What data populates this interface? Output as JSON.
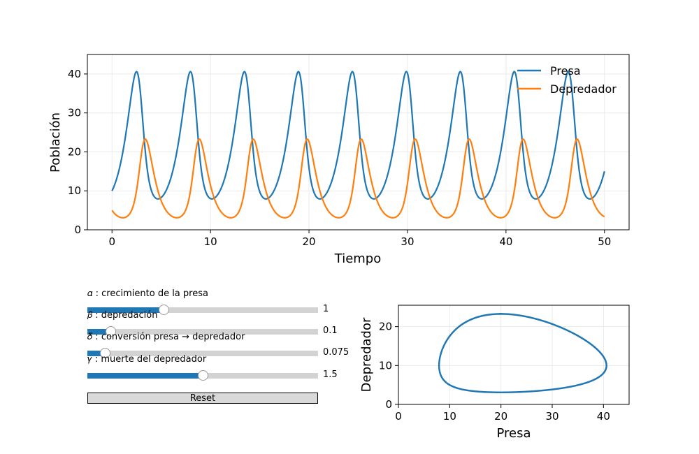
{
  "chart_data": [
    {
      "type": "line",
      "xlabel": "Tiempo",
      "ylabel": "Población",
      "xlim": [
        -2.5,
        52.5
      ],
      "ylim": [
        0,
        45
      ],
      "xticks": [
        0,
        10,
        20,
        30,
        40,
        50
      ],
      "yticks": [
        0,
        10,
        20,
        30,
        40
      ],
      "grid": true,
      "legend": "top-right",
      "model": {
        "alpha": 1,
        "beta": 0.1,
        "delta": 0.075,
        "gamma": 1.5,
        "prey0": 10,
        "predator0": 5,
        "t_end": 50
      },
      "series": [
        {
          "name": "Presa",
          "color": "#1f77b4",
          "peak": 40.5,
          "trough": 8
        },
        {
          "name": "Depredador",
          "color": "#ff7f0e",
          "peak": 23.3,
          "trough": 3.2
        }
      ]
    },
    {
      "type": "line",
      "xlabel": "Presa",
      "ylabel": "Depredador",
      "xlim": [
        0,
        45
      ],
      "ylim": [
        0,
        25.5
      ],
      "xticks": [
        0,
        10,
        20,
        30,
        40
      ],
      "yticks": [
        0,
        10,
        20
      ],
      "grid": true,
      "series": [
        {
          "color": "#1f77b4"
        }
      ]
    }
  ],
  "controls": {
    "sliders": [
      {
        "label": "𝛼 : crecimiento de la presa",
        "value": "1",
        "fill": 0.33,
        "color": "#1f77b4"
      },
      {
        "label": "𝛽 : depredación",
        "value": "0.1",
        "fill": 0.1,
        "color": "#1f77b4"
      },
      {
        "label": "𝛿 : conversión presa → depredador",
        "value": "0.075",
        "fill": 0.075,
        "color": "#1f77b4"
      },
      {
        "label": "𝛾 : muerte del depredador",
        "value": "1.5",
        "fill": 0.5,
        "color": "#1f77b4"
      }
    ],
    "reset_label": "Reset"
  }
}
